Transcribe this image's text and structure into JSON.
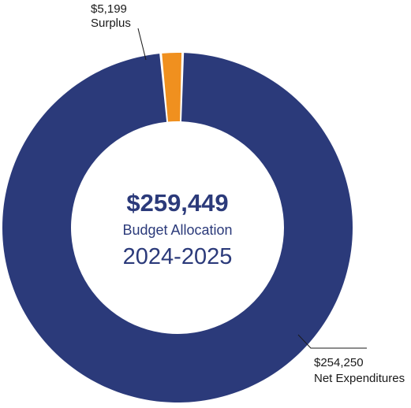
{
  "chart_data": {
    "type": "pie",
    "donut": true,
    "title": "",
    "center": {
      "total": "$259,449",
      "subtitle": "Budget Allocation",
      "period": "2024-2025"
    },
    "slices": [
      {
        "name": "Net Expenditures",
        "value": 254250,
        "value_label": "$254,250",
        "color": "#2b3a7a"
      },
      {
        "name": "Surplus",
        "value": 5199,
        "value_label": "$5,199",
        "color": "#f0901f"
      }
    ],
    "center_text_color": "#2b3a7a"
  }
}
